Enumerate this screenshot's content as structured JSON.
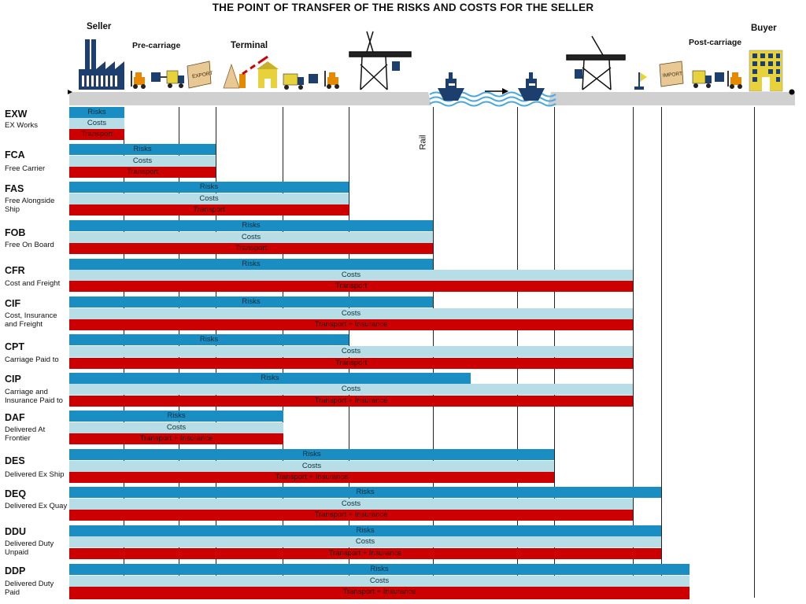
{
  "title": "THE POINT OF TRANSFER OF THE RISKS AND COSTS FOR THE SELLER",
  "stages": {
    "seller": "Seller",
    "precarriage": "Pre-carriage",
    "terminal": "Terminal",
    "postcarriage": "Post-carriage",
    "buyer": "Buyer"
  },
  "rail_label": "Rail",
  "illustration": {
    "export_sign": "EXPORT",
    "import_sign": "IMPORT",
    "icons": [
      "factory-icon",
      "forklift-icon",
      "truck-icon",
      "export-sign-icon",
      "barrier-gate-icon",
      "warehouse-icon",
      "crane-icon",
      "ship-icon",
      "arrow-right-icon",
      "buoy-icon",
      "import-sign-icon",
      "office-building-icon"
    ]
  },
  "colors": {
    "risks": "#1a8ec2",
    "costs": "#b7dee6",
    "transport": "#cc0000"
  },
  "terms": [
    {
      "code": "EXW",
      "name": "EX Works",
      "rows": [
        {
          "label": "Risks",
          "type": "risk"
        },
        {
          "label": "Costs",
          "type": "cost"
        },
        {
          "label": "Transport",
          "type": "trans"
        }
      ]
    },
    {
      "code": "FCA",
      "name": "Free Carrier",
      "rows": [
        {
          "label": "Risks",
          "type": "risk"
        },
        {
          "label": "Costs",
          "type": "cost"
        },
        {
          "label": "Transport",
          "type": "trans"
        }
      ]
    },
    {
      "code": "FAS",
      "name": "Free Alongside Ship",
      "rows": [
        {
          "label": "Risks",
          "type": "risk"
        },
        {
          "label": "Costs",
          "type": "cost"
        },
        {
          "label": "Transport",
          "type": "trans"
        }
      ]
    },
    {
      "code": "FOB",
      "name": "Free On Board",
      "rows": [
        {
          "label": "Risks",
          "type": "risk"
        },
        {
          "label": "Costs",
          "type": "cost"
        },
        {
          "label": "Transport",
          "type": "trans"
        }
      ]
    },
    {
      "code": "CFR",
      "name": "Cost and Freight",
      "rows": [
        {
          "label": "Risks",
          "type": "risk"
        },
        {
          "label": "Costs",
          "type": "cost"
        },
        {
          "label": "Transport",
          "type": "trans"
        }
      ]
    },
    {
      "code": "CIF",
      "name": "Cost, Insurance and Freight",
      "rows": [
        {
          "label": "Risks",
          "type": "risk"
        },
        {
          "label": "Costs",
          "type": "cost"
        },
        {
          "label": "Transport + Insurance",
          "type": "trans"
        }
      ]
    },
    {
      "code": "CPT",
      "name": "Carriage Paid to",
      "rows": [
        {
          "label": "Risks",
          "type": "risk"
        },
        {
          "label": "Costs",
          "type": "cost"
        },
        {
          "label": "Transport",
          "type": "trans"
        }
      ]
    },
    {
      "code": "CIP",
      "name": "Carriage and Insurance Paid to",
      "rows": [
        {
          "label": "Risks",
          "type": "risk"
        },
        {
          "label": "Costs",
          "type": "cost"
        },
        {
          "label": "Transport + Insurance",
          "type": "trans"
        }
      ]
    },
    {
      "code": "DAF",
      "name": "Delivered At Frontier",
      "rows": [
        {
          "label": "Risks",
          "type": "risk"
        },
        {
          "label": "Costs",
          "type": "cost"
        },
        {
          "label": "Transport + Insurance",
          "type": "trans"
        }
      ]
    },
    {
      "code": "DES",
      "name": "Delivered Ex Ship",
      "rows": [
        {
          "label": "Risks",
          "type": "risk"
        },
        {
          "label": "Costs",
          "type": "cost"
        },
        {
          "label": "Transport + Insurance",
          "type": "trans"
        }
      ]
    },
    {
      "code": "DEQ",
      "name": "Delivered Ex Quay",
      "rows": [
        {
          "label": "Risks",
          "type": "risk"
        },
        {
          "label": "Costs",
          "type": "cost"
        },
        {
          "label": "Transport + Insurance",
          "type": "trans"
        }
      ]
    },
    {
      "code": "DDU",
      "name": "Delivered Duty Unpaid",
      "rows": [
        {
          "label": "Risks",
          "type": "risk"
        },
        {
          "label": "Costs",
          "type": "cost"
        },
        {
          "label": "Transport + Insurance",
          "type": "trans"
        }
      ]
    },
    {
      "code": "DDP",
      "name": "Delivered Duty Paid",
      "rows": [
        {
          "label": "Risks",
          "type": "risk"
        },
        {
          "label": "Costs",
          "type": "cost"
        },
        {
          "label": "Transport + Insurance",
          "type": "trans"
        }
      ]
    }
  ]
}
